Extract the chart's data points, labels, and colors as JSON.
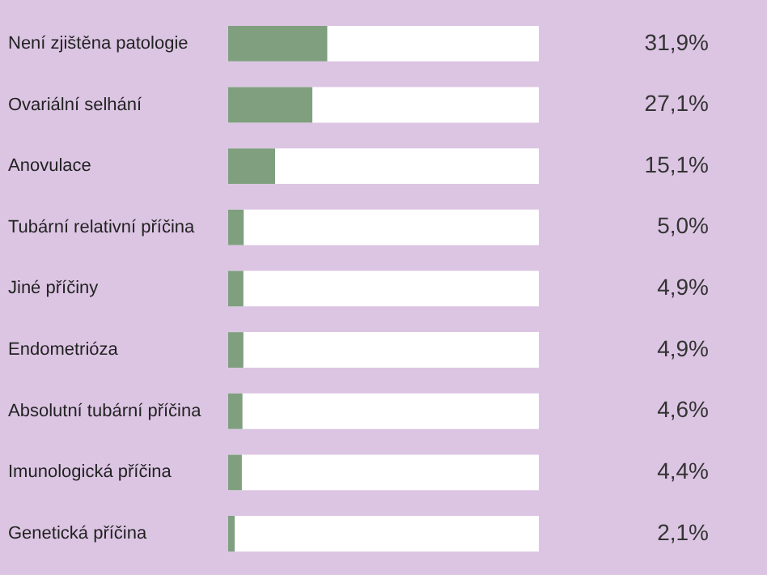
{
  "chart_data": {
    "type": "bar",
    "orientation": "horizontal",
    "categories": [
      "Není zjištěna patologie",
      "Ovariální selhání",
      "Anovulace",
      "Tubární relativní příčina",
      "Jiné příčiny",
      "Endometrióza",
      "Absolutní tubární příčina",
      "Imunologická příčina",
      "Genetická příčina"
    ],
    "values": [
      31.9,
      27.1,
      15.1,
      5.0,
      4.9,
      4.9,
      4.6,
      4.4,
      2.1
    ],
    "value_labels": [
      "31,9%",
      "27,1%",
      "15,1%",
      "5,0%",
      "4,9%",
      "4,9%",
      "4,6%",
      "4,4%",
      "2,1%"
    ],
    "color": "#7f9f7f",
    "xlim": [
      0,
      100
    ],
    "tick_labels": "y",
    "legend": false
  }
}
